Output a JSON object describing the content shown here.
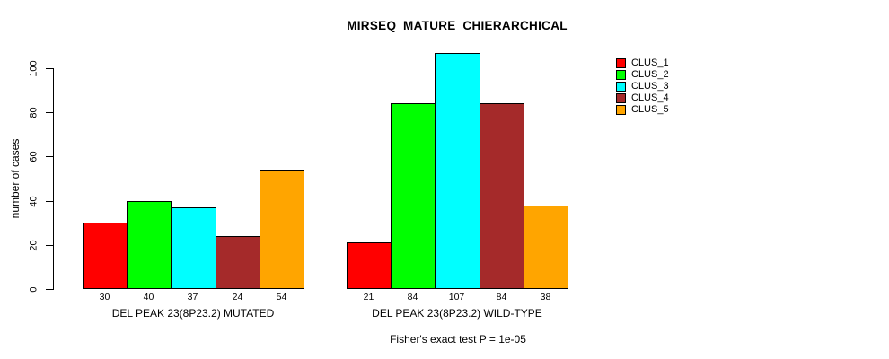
{
  "title": "MIRSEQ_MATURE_CHIERARCHICAL",
  "annotation": "Fisher's exact test P = 1e-05",
  "ylabel": "number of cases",
  "chart_data": {
    "type": "bar",
    "title": "MIRSEQ_MATURE_CHIERARCHICAL",
    "xlabel": "",
    "ylabel": "number of cases",
    "categories": [
      "DEL PEAK 23(8P23.2) MUTATED",
      "DEL PEAK 23(8P23.2) WILD-TYPE"
    ],
    "series": [
      {
        "name": "CLUS_1",
        "color": "#FF0000",
        "values": [
          30,
          21
        ]
      },
      {
        "name": "CLUS_2",
        "color": "#00FF00",
        "values": [
          40,
          84
        ]
      },
      {
        "name": "CLUS_3",
        "color": "#00FFFF",
        "values": [
          37,
          107
        ]
      },
      {
        "name": "CLUS_4",
        "color": "#A52A2A",
        "values": [
          24,
          84
        ]
      },
      {
        "name": "CLUS_5",
        "color": "#FFA500",
        "values": [
          54,
          38
        ]
      }
    ],
    "bar_value_labels": [
      [
        30,
        40,
        37,
        24,
        54
      ],
      [
        21,
        84,
        107,
        84,
        38
      ]
    ],
    "yticks": [
      0,
      20,
      40,
      60,
      80,
      100
    ],
    "ylim": [
      0,
      110
    ],
    "grid": false,
    "legend_position": "right",
    "annotation": "Fisher's exact test P = 1e-05",
    "axis_color": "#000000",
    "background_color": "#FFFFFF"
  }
}
